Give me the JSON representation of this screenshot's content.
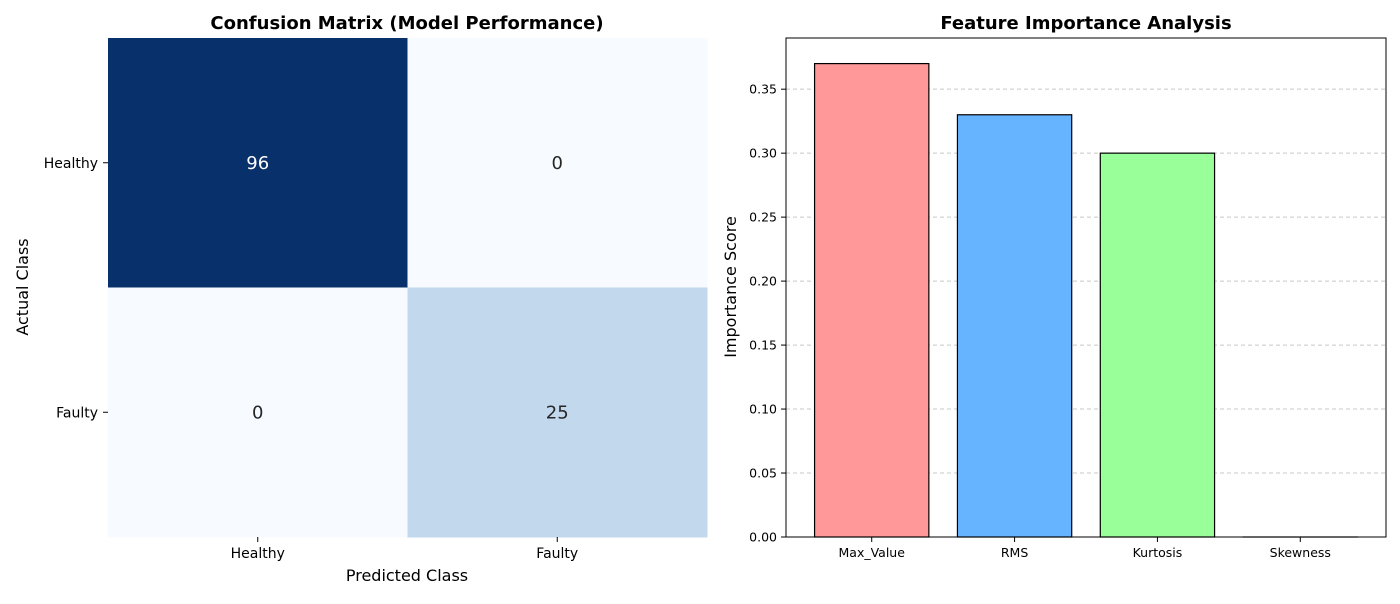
{
  "chart_data": [
    {
      "type": "heatmap",
      "title": "Confusion Matrix (Model Performance)",
      "xlabel": "Predicted Class",
      "ylabel": "Actual Class",
      "x_categories": [
        "Healthy",
        "Faulty"
      ],
      "y_categories": [
        "Healthy",
        "Faulty"
      ],
      "values": [
        [
          96,
          0
        ],
        [
          0,
          25
        ]
      ],
      "colormap": {
        "low": "#f7fbff",
        "mid": "#c2d9ed",
        "high": "#08306b"
      },
      "grid": false,
      "colorbar": false
    },
    {
      "type": "bar",
      "title": "Feature Importance Analysis",
      "xlabel": "",
      "ylabel": "Importance Score",
      "categories": [
        "Max_Value",
        "RMS",
        "Kurtosis",
        "Skewness"
      ],
      "values": [
        0.37,
        0.33,
        0.3,
        0.0
      ],
      "colors": [
        "#ff9999",
        "#66b3ff",
        "#99ff99",
        "#ffcc99"
      ],
      "ylim": [
        0,
        0.39
      ],
      "yticks": [
        "0.00",
        "0.05",
        "0.10",
        "0.15",
        "0.20",
        "0.25",
        "0.30",
        "0.35"
      ],
      "grid": "y-dashed"
    }
  ]
}
